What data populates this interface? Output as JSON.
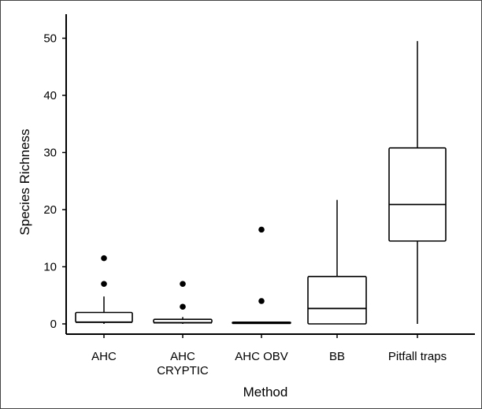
{
  "chart_data": {
    "type": "box",
    "title": "",
    "xlabel": "Method",
    "ylabel": "Species Richness",
    "ylim": [
      -1.5,
      53
    ],
    "yticks": [
      0,
      10,
      20,
      30,
      40,
      50
    ],
    "ytick_labels": [
      "0",
      "10",
      "20",
      "30",
      "40",
      "50"
    ],
    "categories": [
      "AHC",
      "AHC CRYPTIC",
      "AHC OBV",
      "BB",
      "Pitfall traps"
    ],
    "category_lines": [
      [
        "AHC"
      ],
      [
        "AHC",
        "CRYPTIC"
      ],
      [
        "AHC OBV"
      ],
      [
        "BB"
      ],
      [
        "Pitfall traps"
      ]
    ],
    "boxes": [
      {
        "category": "AHC",
        "whisker_low": 0,
        "q1": 0.3,
        "median": 0.3,
        "q3": 2.0,
        "whisker_high": 4.8,
        "outliers": [
          7,
          11.5
        ]
      },
      {
        "category": "AHC CRYPTIC",
        "whisker_low": 0,
        "q1": 0.2,
        "median": 0.2,
        "q3": 0.8,
        "whisker_high": 1.2,
        "outliers": [
          3,
          7
        ]
      },
      {
        "category": "AHC OBV",
        "whisker_low": 0,
        "q1": 0.1,
        "median": 0.1,
        "q3": 0.3,
        "whisker_high": 0.3,
        "outliers": [
          4,
          16.5
        ]
      },
      {
        "category": "BB",
        "whisker_low": 0,
        "q1": 0,
        "median": 2.7,
        "q3": 8.3,
        "whisker_high": 21.7,
        "outliers": []
      },
      {
        "category": "Pitfall traps",
        "whisker_low": 0,
        "q1": 14.5,
        "median": 20.9,
        "q3": 30.8,
        "whisker_high": 49.5,
        "outliers": []
      }
    ],
    "grid": false,
    "legend": "none"
  }
}
